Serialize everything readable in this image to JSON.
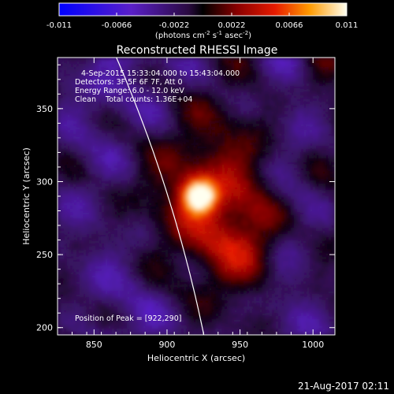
{
  "colorbar": {
    "tick_labels": [
      "-0.011",
      "-0.0066",
      "-0.0022",
      "0.0022",
      "0.0066",
      "0.011"
    ],
    "unit_base": "(photons cm",
    "unit_exp1": "-2",
    "unit_mid": " s",
    "unit_exp2": "-1",
    "unit_tail": " asec",
    "unit_exp3": "-2",
    "unit_close": ")",
    "vmin": -0.011,
    "vmax": 0.011,
    "colormap": "rainbow-like: blue-purple-black-red-orange-yellow-white"
  },
  "chart_data": {
    "type": "heatmap",
    "title": "Reconstructed RHESSI Image",
    "xlabel": "Heliocentric X (arcsec)",
    "ylabel": "Heliocentric Y (arcsec)",
    "xlim": [
      825,
      1015
    ],
    "ylim": [
      195,
      385
    ],
    "xticks": [
      "850",
      "900",
      "950",
      "1000"
    ],
    "yticks": [
      "200",
      "250",
      "300",
      "350"
    ],
    "annotations": {
      "line1": "4-Sep-2015 15:33:04.000 to 15:43:04.000",
      "line2": "Detectors: 3F 5F 6F 7F, Att 0",
      "line3": "Energy Range: 6.0 - 12.0 keV",
      "line4": "Clean    Total counts: 1.36E+04",
      "peak": "Position of Peak = [922,290]"
    },
    "peak": [
      922,
      290
    ],
    "limb_color": "#ffffff"
  },
  "footer": {
    "timestamp": "21-Aug-2017 02:11"
  }
}
